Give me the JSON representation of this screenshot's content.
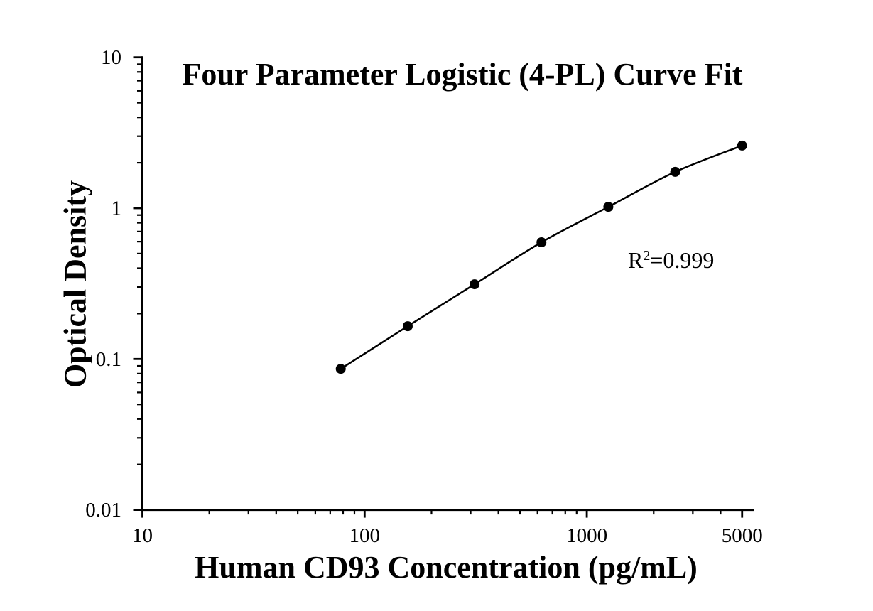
{
  "chart_data": {
    "type": "line",
    "title": "Four Parameter Logistic (4-PL) Curve Fit",
    "xlabel": "Human CD93 Concentration (pg/mL)",
    "ylabel": "Optical Density",
    "annotation": {
      "base": "R",
      "sup": "2",
      "rest": "=0.999"
    },
    "grid": false,
    "legend": "none",
    "line_color": "#000000",
    "marker_color": "#000000",
    "x_axis": {
      "scale": "log",
      "min": 10,
      "max": 5600,
      "ticks": [
        {
          "value": 10,
          "label": "10"
        },
        {
          "value": 100,
          "label": "100"
        },
        {
          "value": 1000,
          "label": "1000"
        },
        {
          "value": 5000,
          "label": "5000"
        }
      ]
    },
    "y_axis": {
      "scale": "log",
      "min": 0.01,
      "max": 10,
      "ticks": [
        {
          "value": 10,
          "label": "10"
        },
        {
          "value": 1,
          "label": "1"
        },
        {
          "value": 0.1,
          "label": "0.1"
        },
        {
          "value": 0.01,
          "label": "0.01"
        }
      ]
    },
    "series": [
      {
        "name": "standard-curve",
        "marker": "circle",
        "points": [
          {
            "x": 78.1,
            "y": 0.086
          },
          {
            "x": 156.3,
            "y": 0.165
          },
          {
            "x": 312.5,
            "y": 0.313
          },
          {
            "x": 625,
            "y": 0.594
          },
          {
            "x": 1250,
            "y": 1.02
          },
          {
            "x": 2500,
            "y": 1.74
          },
          {
            "x": 5000,
            "y": 2.6
          }
        ]
      }
    ]
  }
}
